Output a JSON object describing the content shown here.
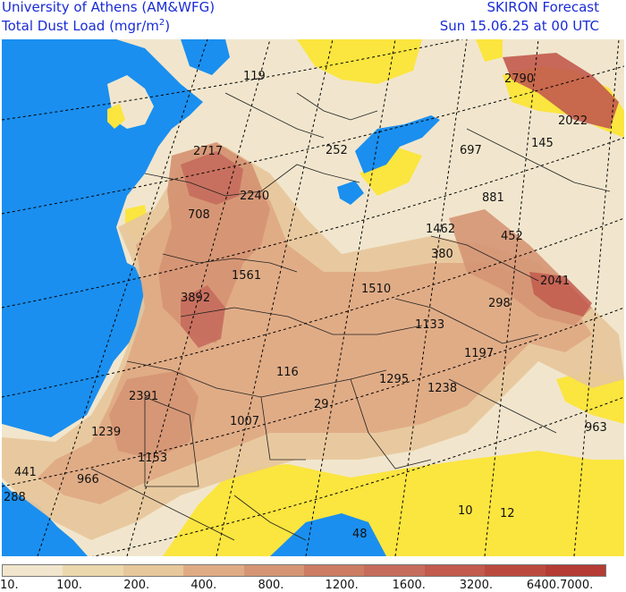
{
  "header": {
    "institution": "University of Athens (AM&WFG)",
    "variable": "Total Dust Load (mgr/m",
    "variable_exponent": "2",
    "variable_close": ")",
    "model": "SKIRON Forecast",
    "valid_time": "Sun 15.06.25 at 00 UTC"
  },
  "colors": {
    "sea": "#1a8fef",
    "no_dust_land": "#fbe53f",
    "grid_line": "#000000"
  },
  "legend": {
    "ticks": [
      "10.",
      "100.",
      "200.",
      "400.",
      "800.",
      "1200.",
      "1600.",
      "3200.",
      "6400.",
      "7000."
    ],
    "colors": [
      "#f1e6cd",
      "#ecd8ad",
      "#e7c79c",
      "#dfab85",
      "#d59574",
      "#cb7c62",
      "#c66c5d",
      "#c25a4e",
      "#bb4a3e",
      "#b43c34"
    ]
  },
  "map_values": [
    {
      "text": "119"
    },
    {
      "text": "2790"
    },
    {
      "text": "2022"
    },
    {
      "text": "2717"
    },
    {
      "text": "252"
    },
    {
      "text": "697"
    },
    {
      "text": "145"
    },
    {
      "text": "2240"
    },
    {
      "text": "881"
    },
    {
      "text": "708"
    },
    {
      "text": "1462"
    },
    {
      "text": "452"
    },
    {
      "text": "380"
    },
    {
      "text": "1561"
    },
    {
      "text": "2041"
    },
    {
      "text": "3892"
    },
    {
      "text": "1510"
    },
    {
      "text": "298"
    },
    {
      "text": "1133"
    },
    {
      "text": "1197"
    },
    {
      "text": "116"
    },
    {
      "text": "1295"
    },
    {
      "text": "1238"
    },
    {
      "text": "2391"
    },
    {
      "text": "29"
    },
    {
      "text": "1007"
    },
    {
      "text": "963"
    },
    {
      "text": "1239"
    },
    {
      "text": "1153"
    },
    {
      "text": "441"
    },
    {
      "text": "966"
    },
    {
      "text": "288"
    },
    {
      "text": "10"
    },
    {
      "text": "12"
    },
    {
      "text": "48"
    }
  ]
}
